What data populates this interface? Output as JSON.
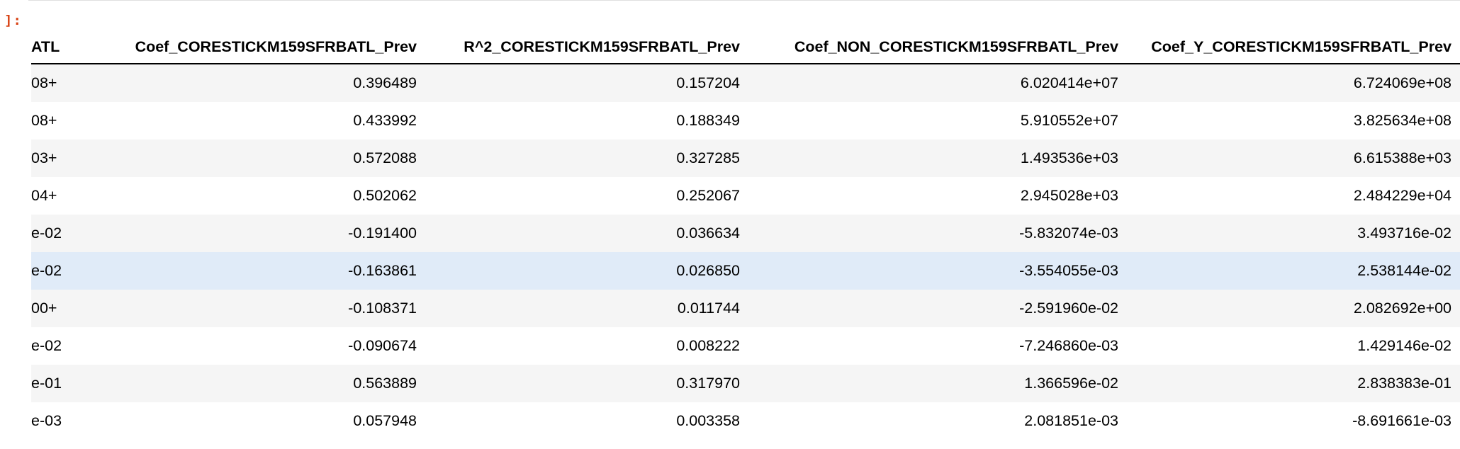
{
  "cell": {
    "prompt": "]:"
  },
  "table": {
    "columns": [
      "ATL",
      "Coef_CORESTICKM159SFRBATL_Prev",
      "R^2_CORESTICKM159SFRBATL_Prev",
      "Coef_NON_CORESTICKM159SFRBATL_Prev",
      "Coef_Y_CORESTICKM159SFRBATL_Prev"
    ],
    "rows": [
      [
        "+08",
        "0.396489",
        "0.157204",
        "6.020414e+07",
        "6.724069e+08"
      ],
      [
        "+08",
        "0.433992",
        "0.188349",
        "5.910552e+07",
        "3.825634e+08"
      ],
      [
        "+03",
        "0.572088",
        "0.327285",
        "1.493536e+03",
        "6.615388e+03"
      ],
      [
        "+04",
        "0.502062",
        "0.252067",
        "2.945028e+03",
        "2.484229e+04"
      ],
      [
        "e-02",
        "-0.191400",
        "0.036634",
        "-5.832074e-03",
        "3.493716e-02"
      ],
      [
        "e-02",
        "-0.163861",
        "0.026850",
        "-3.554055e-03",
        "2.538144e-02"
      ],
      [
        "+00",
        "-0.108371",
        "0.011744",
        "-2.591960e-02",
        "2.082692e+00"
      ],
      [
        "e-02",
        "-0.090674",
        "0.008222",
        "-7.246860e-03",
        "1.429146e-02"
      ],
      [
        "e-01",
        "0.563889",
        "0.317970",
        "1.366596e-02",
        "2.838383e-01"
      ],
      [
        "e-03",
        "0.057948",
        "0.003358",
        "2.081851e-03",
        "-8.691661e-03"
      ]
    ],
    "hovered_row_index": 5
  },
  "colors": {
    "prompt": "#d84315",
    "row_stripe": "#f5f5f5",
    "row_hover": "#e0ebf8",
    "header_rule": "#000000"
  }
}
